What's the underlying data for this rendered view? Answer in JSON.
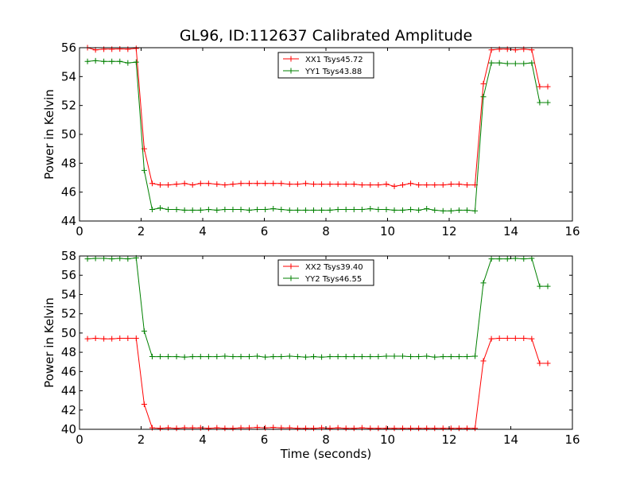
{
  "title": "GL96, ID:112637 Calibrated Amplitude",
  "xlabel": "Time (seconds)",
  "chart_data": [
    {
      "type": "line",
      "ylabel": "Power in Kelvin",
      "xlim": [
        0,
        16
      ],
      "ylim": [
        44,
        56
      ],
      "xticks": [
        0,
        2,
        4,
        6,
        8,
        10,
        12,
        14,
        16
      ],
      "yticks": [
        44,
        46,
        48,
        50,
        52,
        54,
        56
      ],
      "legend_position": "top-center",
      "grid": false,
      "x": [
        0.26,
        0.52,
        0.79,
        1.05,
        1.31,
        1.57,
        1.84,
        2.1,
        2.36,
        2.62,
        2.88,
        3.15,
        3.41,
        3.67,
        3.93,
        4.19,
        4.46,
        4.72,
        4.98,
        5.24,
        5.51,
        5.77,
        6.03,
        6.29,
        6.55,
        6.82,
        7.08,
        7.34,
        7.6,
        7.86,
        8.13,
        8.39,
        8.65,
        8.91,
        9.17,
        9.44,
        9.7,
        9.96,
        10.22,
        10.49,
        10.75,
        11.01,
        11.27,
        11.53,
        11.8,
        12.06,
        12.32,
        12.58,
        12.84,
        13.11,
        13.37,
        13.63,
        13.89,
        14.15,
        14.42,
        14.68,
        14.94,
        15.2
      ],
      "series": [
        {
          "name": "XX1 Tsys45.72",
          "color": "#ff0000",
          "values": [
            56.0,
            55.85,
            55.9,
            55.9,
            55.92,
            55.9,
            55.95,
            49.0,
            46.6,
            46.5,
            46.5,
            46.55,
            46.6,
            46.5,
            46.6,
            46.6,
            46.55,
            46.5,
            46.55,
            46.6,
            46.6,
            46.6,
            46.6,
            46.6,
            46.6,
            46.55,
            46.55,
            46.6,
            46.55,
            46.55,
            46.55,
            46.55,
            46.55,
            46.55,
            46.5,
            46.5,
            46.5,
            46.55,
            46.4,
            46.5,
            46.6,
            46.5,
            46.5,
            46.5,
            46.5,
            46.55,
            46.55,
            46.5,
            46.5,
            53.5,
            55.85,
            55.9,
            55.9,
            55.85,
            55.9,
            55.85,
            53.3,
            53.3
          ]
        },
        {
          "name": "YY1 Tsys43.88",
          "color": "#008000",
          "values": [
            55.05,
            55.1,
            55.05,
            55.05,
            55.05,
            54.95,
            55.0,
            47.5,
            44.8,
            44.9,
            44.8,
            44.8,
            44.75,
            44.75,
            44.75,
            44.8,
            44.75,
            44.8,
            44.8,
            44.8,
            44.75,
            44.8,
            44.8,
            44.85,
            44.8,
            44.75,
            44.75,
            44.75,
            44.75,
            44.75,
            44.75,
            44.8,
            44.8,
            44.8,
            44.8,
            44.85,
            44.8,
            44.8,
            44.75,
            44.75,
            44.8,
            44.75,
            44.85,
            44.75,
            44.7,
            44.7,
            44.75,
            44.75,
            44.7,
            52.6,
            54.95,
            54.95,
            54.9,
            54.9,
            54.9,
            54.95,
            52.2,
            52.2
          ]
        }
      ]
    },
    {
      "type": "line",
      "ylabel": "Power in Kelvin",
      "xlim": [
        0,
        16
      ],
      "ylim": [
        40,
        58
      ],
      "xticks": [
        0,
        2,
        4,
        6,
        8,
        10,
        12,
        14,
        16
      ],
      "yticks": [
        40,
        42,
        44,
        46,
        48,
        50,
        52,
        54,
        56,
        58
      ],
      "legend_position": "top-center",
      "grid": false,
      "x": [
        0.26,
        0.52,
        0.79,
        1.05,
        1.31,
        1.57,
        1.84,
        2.1,
        2.36,
        2.62,
        2.88,
        3.15,
        3.41,
        3.67,
        3.93,
        4.19,
        4.46,
        4.72,
        4.98,
        5.24,
        5.51,
        5.77,
        6.03,
        6.29,
        6.55,
        6.82,
        7.08,
        7.34,
        7.6,
        7.86,
        8.13,
        8.39,
        8.65,
        8.91,
        9.17,
        9.44,
        9.7,
        9.96,
        10.22,
        10.49,
        10.75,
        11.01,
        11.27,
        11.53,
        11.8,
        12.06,
        12.32,
        12.58,
        12.84,
        13.11,
        13.37,
        13.63,
        13.89,
        14.15,
        14.42,
        14.68,
        14.94,
        15.2
      ],
      "series": [
        {
          "name": "XX2 Tsys39.40",
          "color": "#ff0000",
          "values": [
            49.4,
            49.45,
            49.4,
            49.4,
            49.45,
            49.45,
            49.45,
            42.6,
            40.15,
            40.1,
            40.15,
            40.1,
            40.15,
            40.15,
            40.15,
            40.1,
            40.15,
            40.1,
            40.1,
            40.15,
            40.15,
            40.2,
            40.15,
            40.2,
            40.15,
            40.15,
            40.1,
            40.1,
            40.1,
            40.15,
            40.1,
            40.15,
            40.1,
            40.1,
            40.15,
            40.1,
            40.1,
            40.1,
            40.1,
            40.1,
            40.1,
            40.1,
            40.1,
            40.1,
            40.1,
            40.1,
            40.1,
            40.1,
            40.1,
            47.1,
            49.4,
            49.45,
            49.45,
            49.45,
            49.45,
            49.4,
            46.85,
            46.85
          ]
        },
        {
          "name": "YY2 Tsys46.55",
          "color": "#008000",
          "values": [
            57.7,
            57.75,
            57.75,
            57.7,
            57.75,
            57.7,
            57.8,
            50.2,
            47.55,
            47.55,
            47.55,
            47.55,
            47.5,
            47.55,
            47.55,
            47.55,
            47.55,
            47.6,
            47.55,
            47.55,
            47.55,
            47.6,
            47.5,
            47.55,
            47.55,
            47.6,
            47.55,
            47.5,
            47.55,
            47.5,
            47.55,
            47.55,
            47.55,
            47.55,
            47.55,
            47.55,
            47.55,
            47.6,
            47.6,
            47.6,
            47.55,
            47.55,
            47.6,
            47.5,
            47.55,
            47.55,
            47.55,
            47.55,
            47.6,
            55.2,
            57.7,
            57.7,
            57.7,
            57.75,
            57.7,
            57.75,
            54.85,
            54.85
          ]
        }
      ]
    }
  ]
}
